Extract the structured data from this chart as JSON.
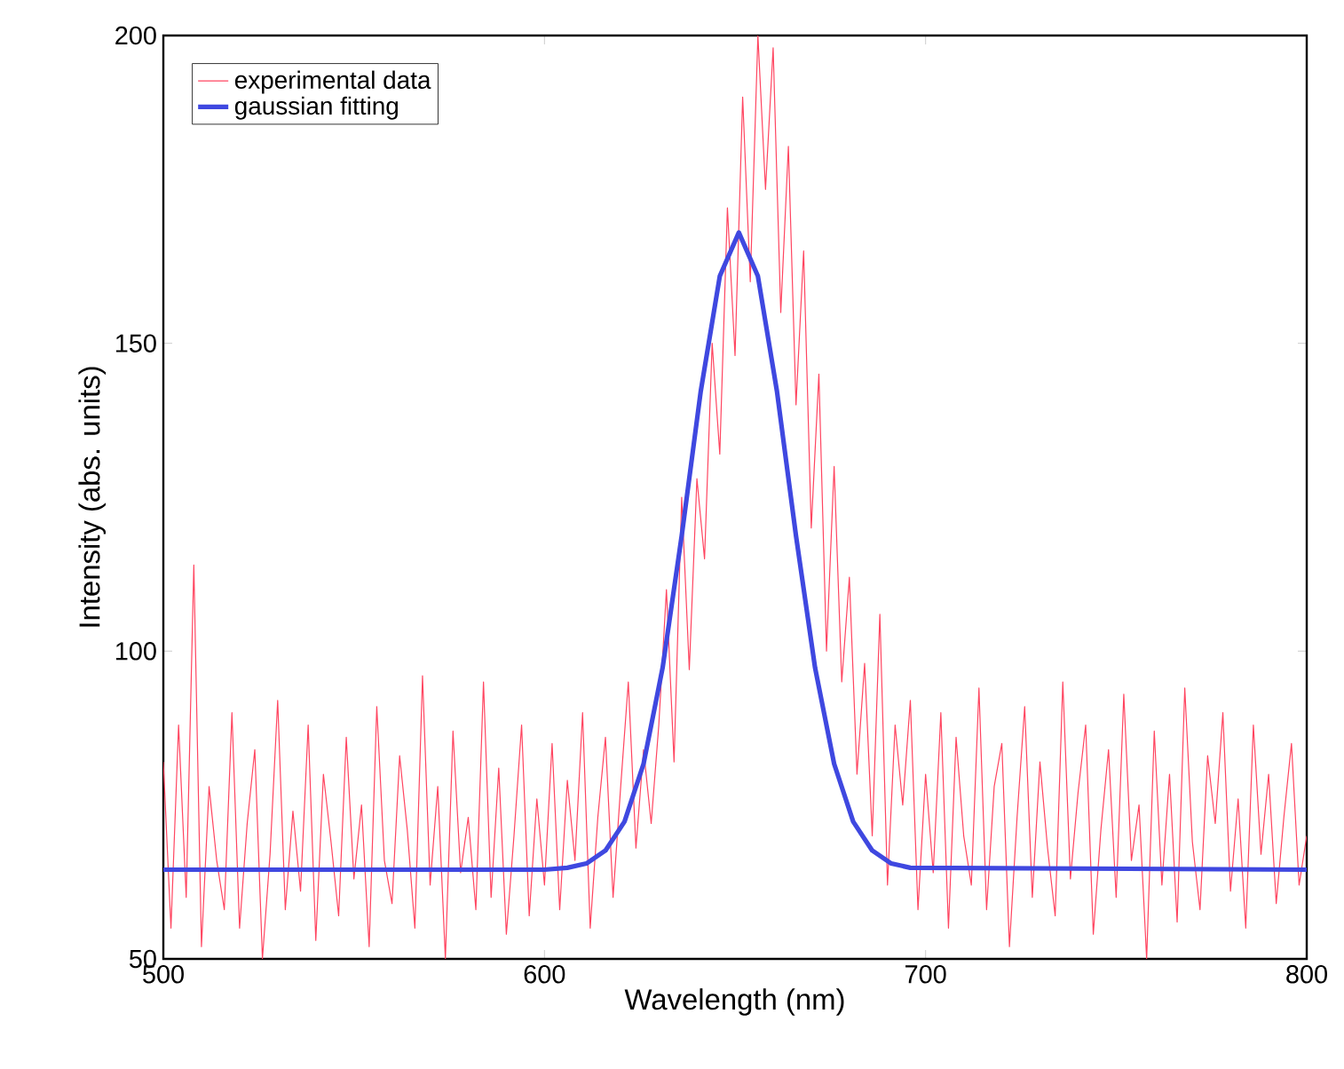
{
  "chart_data": {
    "type": "line",
    "xlabel": "Wavelength (nm)",
    "ylabel": "Intensity (abs. units)",
    "xlim": [
      500,
      800
    ],
    "ylim": [
      50,
      200
    ],
    "xticks": [
      500,
      600,
      700,
      800
    ],
    "yticks": [
      50,
      100,
      150,
      200
    ],
    "legend": "top left",
    "grid": false,
    "marker": "none",
    "line_style": "solid",
    "series": [
      {
        "name": "experimental data",
        "color": "#ff4560",
        "x": [
          500,
          502,
          504,
          506,
          508,
          510,
          512,
          514,
          516,
          518,
          520,
          522,
          524,
          526,
          528,
          530,
          532,
          534,
          536,
          538,
          540,
          542,
          544,
          546,
          548,
          550,
          552,
          554,
          556,
          558,
          560,
          562,
          564,
          566,
          568,
          570,
          572,
          574,
          576,
          578,
          580,
          582,
          584,
          586,
          588,
          590,
          592,
          594,
          596,
          598,
          600,
          602,
          604,
          606,
          608,
          610,
          612,
          614,
          616,
          618,
          620,
          622,
          624,
          626,
          628,
          630,
          632,
          634,
          636,
          638,
          640,
          642,
          644,
          646,
          648,
          650,
          652,
          654,
          656,
          658,
          660,
          662,
          664,
          666,
          668,
          670,
          672,
          674,
          676,
          678,
          680,
          682,
          684,
          686,
          688,
          690,
          692,
          694,
          696,
          698,
          700,
          702,
          704,
          706,
          708,
          710,
          712,
          714,
          716,
          718,
          720,
          722,
          724,
          726,
          728,
          730,
          732,
          734,
          736,
          738,
          740,
          742,
          744,
          746,
          748,
          750,
          752,
          754,
          756,
          758,
          760,
          762,
          764,
          766,
          768,
          770,
          772,
          774,
          776,
          778,
          780,
          782,
          784,
          786,
          788,
          790,
          792,
          794,
          796,
          798,
          800
        ],
        "values": [
          82,
          55,
          88,
          60,
          114,
          52,
          78,
          66,
          58,
          90,
          55,
          72,
          84,
          50,
          67,
          92,
          58,
          74,
          61,
          88,
          53,
          80,
          69,
          57,
          86,
          63,
          75,
          52,
          91,
          66,
          59,
          83,
          71,
          55,
          96,
          62,
          78,
          50,
          87,
          64,
          73,
          58,
          95,
          60,
          81,
          54,
          70,
          88,
          57,
          76,
          62,
          85,
          58,
          79,
          66,
          90,
          55,
          73,
          86,
          60,
          78,
          95,
          68,
          84,
          72,
          88,
          110,
          82,
          125,
          97,
          128,
          115,
          150,
          132,
          172,
          148,
          190,
          160,
          200,
          175,
          198,
          155,
          182,
          140,
          165,
          120,
          145,
          100,
          130,
          95,
          112,
          80,
          98,
          70,
          106,
          62,
          88,
          75,
          92,
          58,
          80,
          64,
          90,
          55,
          86,
          70,
          62,
          94,
          58,
          78,
          85,
          52,
          73,
          91,
          60,
          82,
          68,
          57,
          95,
          63,
          77,
          88,
          54,
          71,
          84,
          60,
          93,
          66,
          75,
          50,
          87,
          62,
          80,
          56,
          94,
          69,
          58,
          83,
          72,
          90,
          61,
          76,
          55,
          88,
          67,
          80,
          59,
          73,
          85,
          62,
          70
        ]
      },
      {
        "name": "gaussian fitting",
        "color": "#3f48e0",
        "x": [
          500,
          600,
          606,
          611,
          616,
          621,
          626,
          631,
          636,
          641,
          646,
          651,
          656,
          661,
          666,
          671,
          676,
          681,
          686,
          691,
          696,
          800
        ],
        "values": [
          64.5,
          64.5,
          64.8,
          65.5,
          67.6,
          72.3,
          81.7,
          97.3,
          118.7,
          142.2,
          160.9,
          168,
          160.9,
          142.2,
          118.7,
          97.3,
          81.7,
          72.3,
          67.6,
          65.5,
          64.8,
          64.5
        ]
      }
    ]
  }
}
